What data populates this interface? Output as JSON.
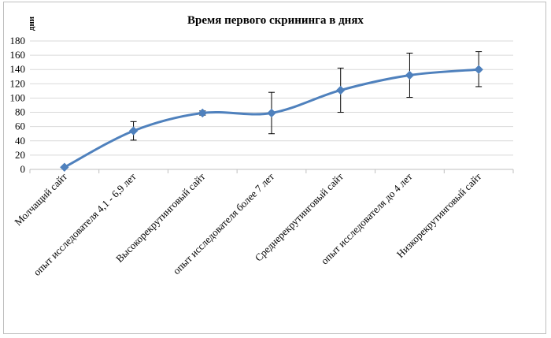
{
  "chart_data": {
    "type": "line",
    "title": "Время первого  скрининга  в днях",
    "ylabel": "дни",
    "xlabel": "",
    "ylim": [
      0,
      180
    ],
    "yticks": [
      0,
      20,
      40,
      60,
      80,
      100,
      120,
      140,
      160,
      180
    ],
    "grid": true,
    "categories": [
      "Молчащий сайт",
      "опыт исследователя 4,1 - 6,9 лет",
      "Высокорекрутинговый  сайт",
      "опыт исследователя более 7 лет",
      "Среднерекрутинговый  сайт",
      "опыт исследователя до 4 лет",
      "Низкорекрутинговый  сайт"
    ],
    "series": [
      {
        "values": [
          3,
          54,
          79,
          79,
          111,
          132,
          140
        ],
        "error_low": [
          3,
          41,
          76,
          50,
          80,
          101,
          116
        ],
        "error_high": [
          3,
          67,
          82,
          108,
          142,
          163,
          165
        ],
        "color": "#4f81bd"
      }
    ]
  }
}
